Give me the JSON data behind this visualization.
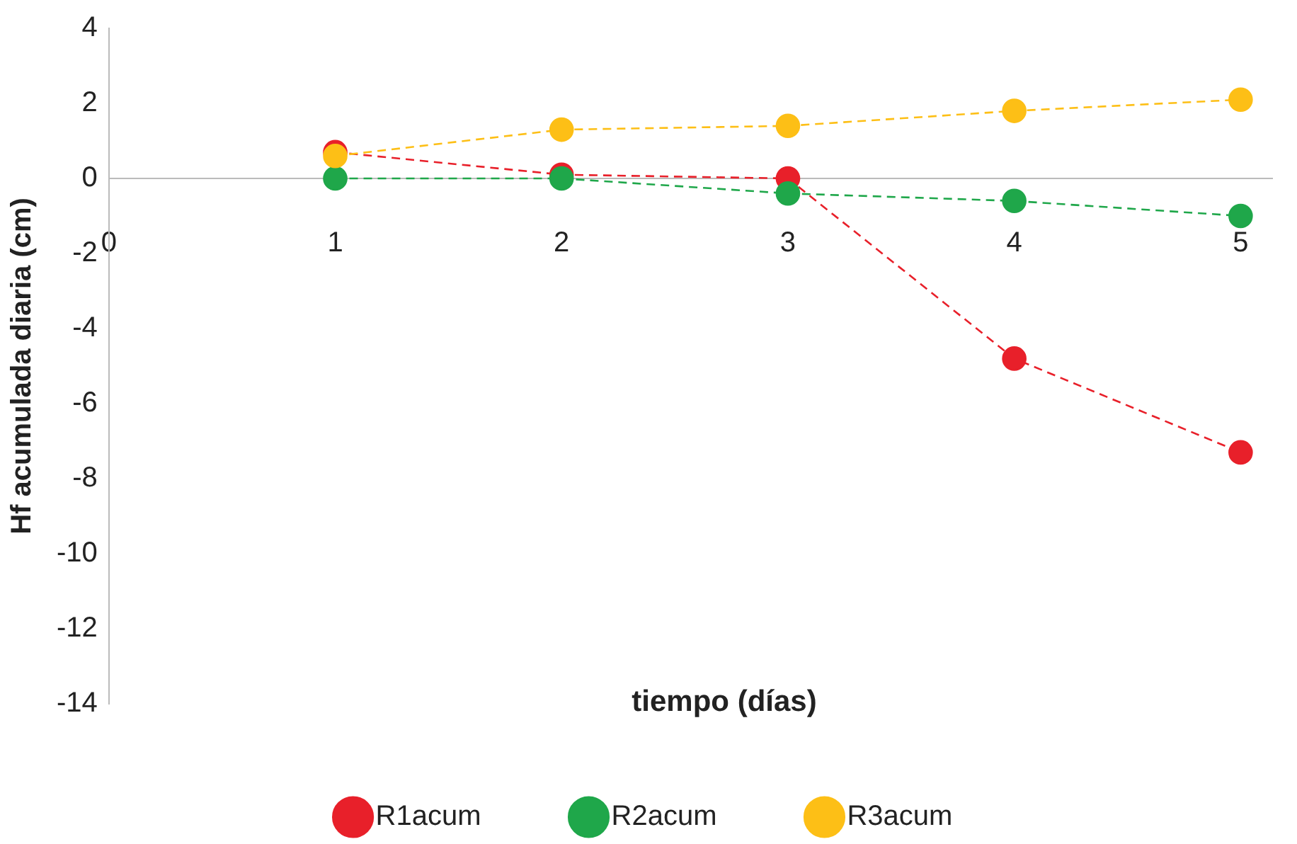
{
  "chart_data": {
    "type": "line",
    "xlabel": "tiempo (días)",
    "ylabel": "Hf acumulada diaria (cm)",
    "x": [
      1,
      2,
      3,
      4,
      5
    ],
    "xlim": [
      0,
      5.14
    ],
    "xticks": [
      0,
      1,
      2,
      3,
      4,
      5
    ],
    "ylim": [
      -14,
      4
    ],
    "yticks": [
      -14,
      -12,
      -10,
      -8,
      -6,
      -4,
      -2,
      0,
      2,
      4
    ],
    "series": [
      {
        "name": "R1acum",
        "color": "#e8202a",
        "values": [
          0.7,
          0.1,
          0,
          -4.8,
          -7.3
        ]
      },
      {
        "name": "R2acum",
        "color": "#1fa74a",
        "values": [
          0,
          0,
          -0.4,
          -0.6,
          -1.0
        ]
      },
      {
        "name": "R3acum",
        "color": "#fdbf16",
        "values": [
          0.6,
          1.3,
          1.4,
          1.8,
          2.1
        ]
      }
    ],
    "grid": false,
    "legend": "bottom",
    "marker": "circle",
    "line_style": "dashed"
  }
}
